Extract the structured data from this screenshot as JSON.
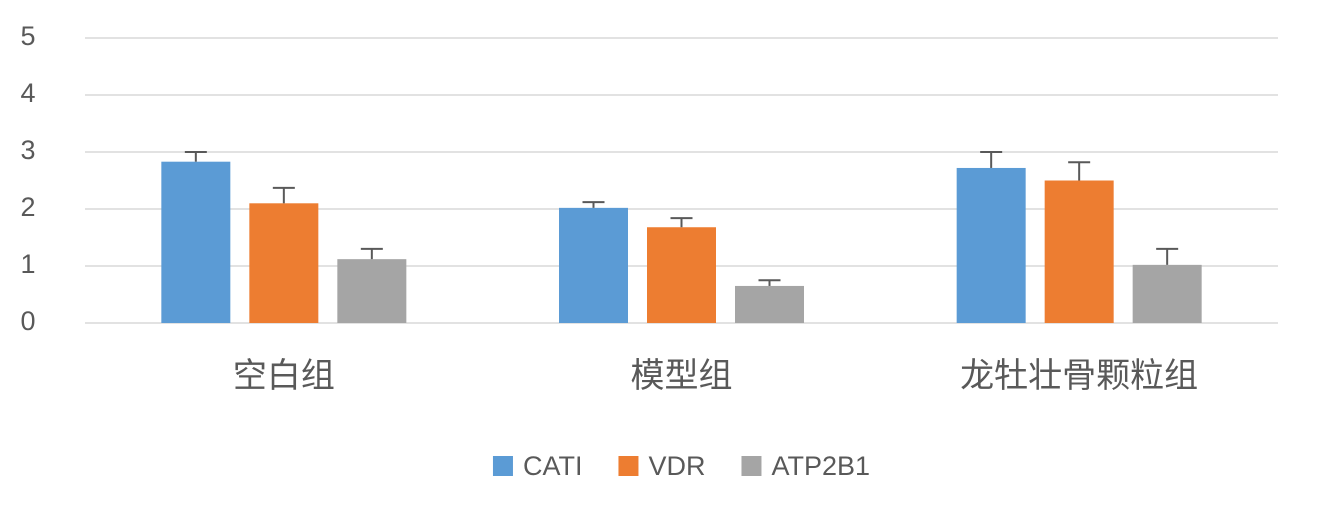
{
  "chart_data": {
    "type": "bar",
    "categories": [
      "空白组",
      "模型组",
      "龙牡壮骨颗粒组"
    ],
    "series": [
      {
        "name": "CATI",
        "color": "#5b9bd5",
        "values": [
          2.83,
          2.02,
          2.72
        ],
        "errors": [
          0.17,
          0.1,
          0.28
        ]
      },
      {
        "name": "VDR",
        "color": "#ed7d31",
        "values": [
          2.1,
          1.68,
          2.5
        ],
        "errors": [
          0.27,
          0.16,
          0.32
        ]
      },
      {
        "name": "ATP2B1",
        "color": "#a5a5a5",
        "values": [
          1.12,
          0.65,
          1.02
        ],
        "errors": [
          0.18,
          0.1,
          0.28
        ]
      }
    ],
    "ylim": [
      0,
      5
    ],
    "yticks": [
      0,
      1,
      2,
      3,
      4,
      5
    ],
    "grid": true,
    "legend": "bottom"
  }
}
